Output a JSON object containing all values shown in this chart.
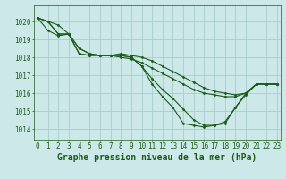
{
  "title": "Graphe pression niveau de la mer (hPa)",
  "background_color": "#cce8e8",
  "grid_color": "#aacccc",
  "line_color": "#1a5c1a",
  "x_ticks": [
    0,
    1,
    2,
    3,
    4,
    5,
    6,
    7,
    8,
    9,
    10,
    11,
    12,
    13,
    14,
    15,
    16,
    17,
    18,
    19,
    20,
    21,
    22,
    23
  ],
  "y_ticks": [
    1014,
    1015,
    1016,
    1017,
    1018,
    1019,
    1020
  ],
  "ylim": [
    1013.4,
    1020.9
  ],
  "xlim": [
    -0.3,
    23.3
  ],
  "series": [
    [
      1020.2,
      1020.0,
      1019.8,
      1019.3,
      1018.5,
      1018.2,
      1018.1,
      1018.1,
      1018.2,
      1018.1,
      1018.0,
      1017.8,
      1017.5,
      1017.2,
      1016.9,
      1016.6,
      1016.3,
      1016.1,
      1016.0,
      1015.9,
      1016.0,
      1016.5,
      1016.5,
      1016.5
    ],
    [
      1020.2,
      1019.5,
      1019.2,
      1019.3,
      1018.5,
      1018.2,
      1018.1,
      1018.1,
      1018.0,
      1017.9,
      1017.7,
      1017.4,
      1017.1,
      1016.8,
      1016.5,
      1016.2,
      1016.0,
      1015.9,
      1015.8,
      1015.8,
      1016.0,
      1016.5,
      1016.5,
      1016.5
    ],
    [
      1020.2,
      1020.0,
      1019.3,
      1019.3,
      1018.2,
      1018.1,
      1018.1,
      1018.1,
      1018.1,
      1018.0,
      1017.5,
      1016.8,
      1016.2,
      1015.7,
      1015.1,
      1014.5,
      1014.2,
      1014.2,
      1014.4,
      1015.2,
      1015.9,
      1016.5,
      1016.5,
      1016.5
    ],
    [
      1020.2,
      1020.0,
      1019.3,
      1019.3,
      1018.2,
      1018.1,
      1018.1,
      1018.1,
      1018.1,
      1018.0,
      1017.5,
      1016.5,
      1015.8,
      1015.2,
      1014.3,
      1014.2,
      1014.1,
      1014.2,
      1014.3,
      1015.2,
      1016.0,
      1016.5,
      1016.5,
      1016.5
    ]
  ],
  "title_fontsize": 7,
  "tick_fontsize": 5.5,
  "title_fontweight": "bold",
  "title_color": "#1a5c1a",
  "tick_color": "#1a5c1a",
  "spine_color": "#1a5c1a"
}
